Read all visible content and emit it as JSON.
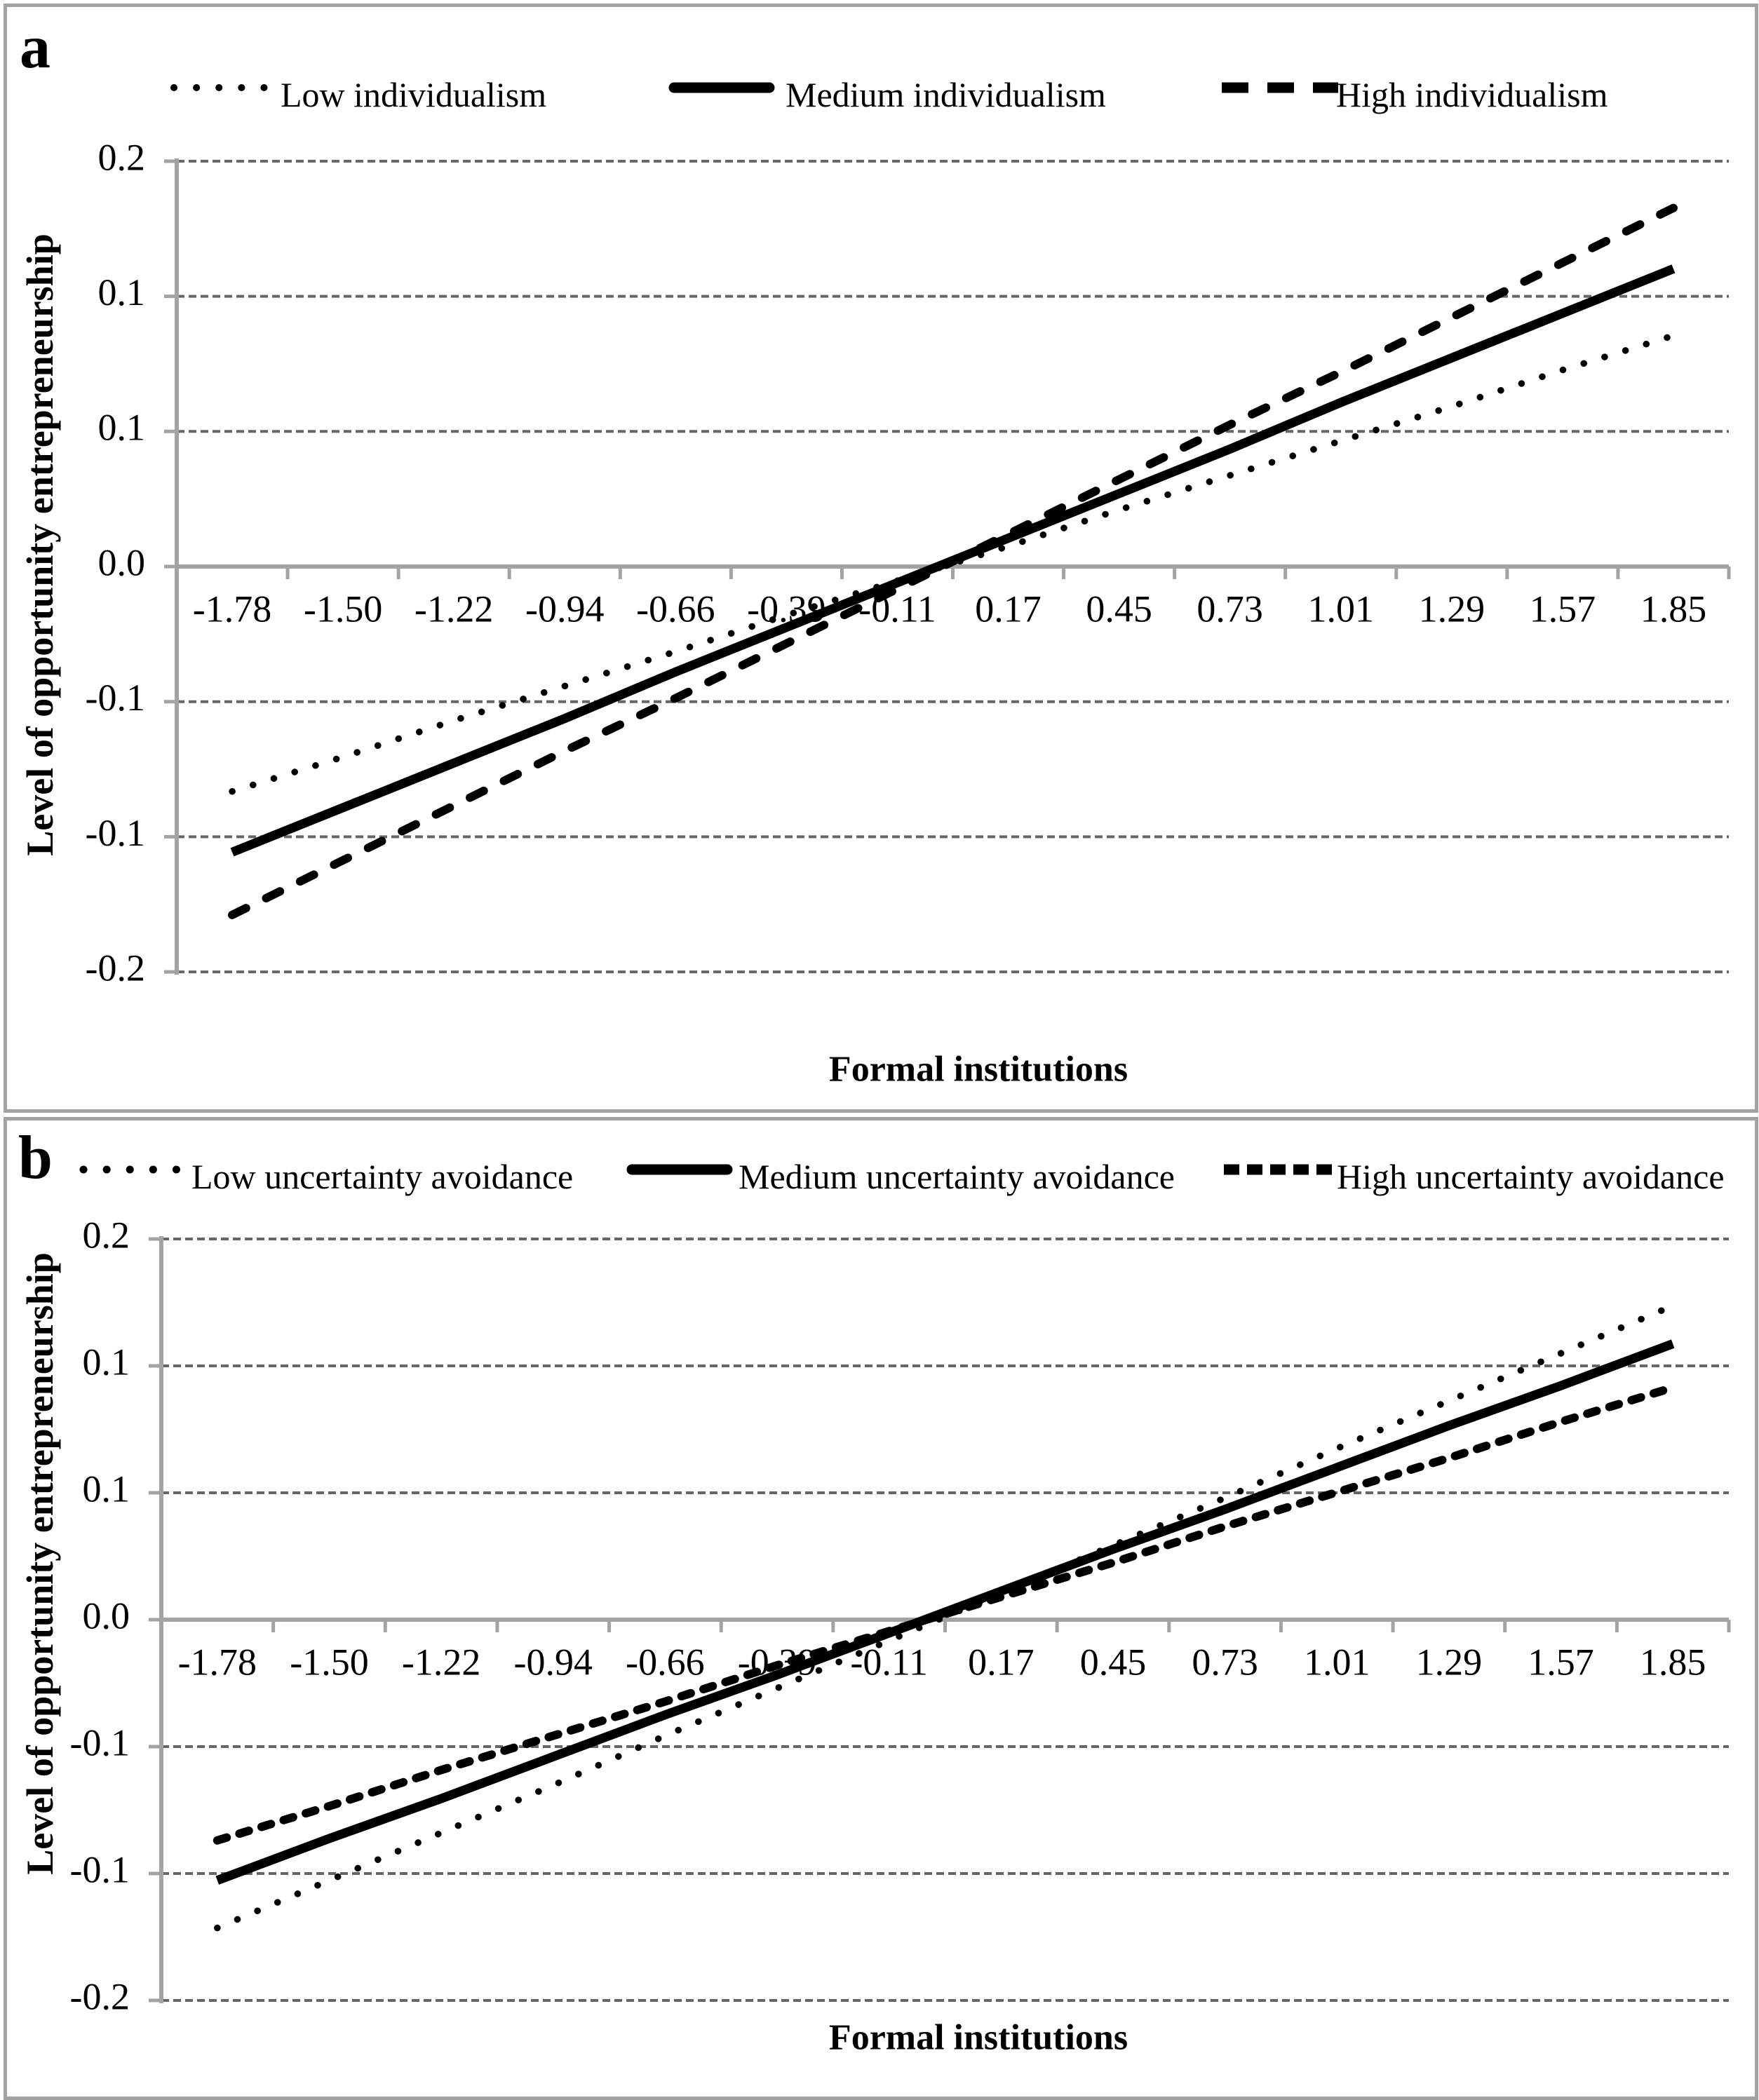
{
  "figure_background": "#ffffff",
  "colors": {
    "line": "#000000",
    "gridline": "#666666",
    "axis": "#a3a3a3",
    "panel_border": "#a3a3a3",
    "text": "#000000",
    "background": "#ffffff"
  },
  "chart_data": [
    {
      "type": "line",
      "panel_label": "a",
      "xlabel": "Formal institutions",
      "ylabel": "Level of opportunity entrepreneurship",
      "ylim": [
        -0.2,
        0.2
      ],
      "y_tick_step": 0.0667,
      "legend_position": "top",
      "gridlines": "horizontal-dashed",
      "categories": [
        -1.78,
        -1.5,
        -1.22,
        -0.94,
        -0.66,
        -0.39,
        -0.11,
        0.17,
        0.45,
        0.73,
        1.01,
        1.29,
        1.57,
        1.85
      ],
      "x_tick_labels": [
        "-1.78",
        "-1.50",
        "-1.22",
        "-0.94",
        "-0.66",
        "-0.39",
        "-0.11",
        "0.17",
        "0.45",
        "0.73",
        "1.01",
        "1.29",
        "1.57",
        "1.85"
      ],
      "y_tick_labels": [
        "0.2",
        "0.1",
        "0.1",
        "0.0",
        "-0.1",
        "-0.1",
        "-0.2"
      ],
      "series": [
        {
          "name": "Low individualism",
          "line_style": "dotted",
          "values": [
            -0.111,
            -0.094,
            -0.076,
            -0.059,
            -0.042,
            -0.024,
            -0.007,
            0.01,
            0.028,
            0.045,
            0.062,
            0.079,
            0.097,
            0.114
          ]
        },
        {
          "name": "Medium individualism",
          "line_style": "solid",
          "values": [
            -0.141,
            -0.119,
            -0.097,
            -0.075,
            -0.052,
            -0.03,
            -0.008,
            0.014,
            0.036,
            0.058,
            0.081,
            0.103,
            0.125,
            0.147
          ]
        },
        {
          "name": "High individualism",
          "line_style": "dashed-long",
          "values": [
            -0.172,
            -0.145,
            -0.118,
            -0.091,
            -0.065,
            -0.038,
            -0.011,
            0.016,
            0.043,
            0.07,
            0.096,
            0.123,
            0.15,
            0.177
          ]
        }
      ]
    },
    {
      "type": "line",
      "panel_label": "b",
      "xlabel": "Formal institutions",
      "ylabel": "Level of opportunity entrepreneurship",
      "ylim": [
        -0.2,
        0.2
      ],
      "y_tick_step": 0.0667,
      "legend_position": "top",
      "gridlines": "horizontal-dashed",
      "categories": [
        -1.78,
        -1.5,
        -1.22,
        -0.94,
        -0.66,
        -0.39,
        -0.11,
        0.17,
        0.45,
        0.73,
        1.01,
        1.29,
        1.57,
        1.85
      ],
      "x_tick_labels": [
        "-1.78",
        "-1.50",
        "-1.22",
        "-0.94",
        "-0.66",
        "-0.39",
        "-0.11",
        "0.17",
        "0.45",
        "0.73",
        "1.01",
        "1.29",
        "1.57",
        "1.85"
      ],
      "y_tick_labels": [
        "0.2",
        "0.1",
        "0.1",
        "0.0",
        "-0.1",
        "-0.1",
        "-0.2"
      ],
      "series": [
        {
          "name": "Low uncertainty avoidance",
          "line_style": "dotted",
          "values": [
            -0.162,
            -0.137,
            -0.112,
            -0.087,
            -0.061,
            -0.036,
            -0.011,
            0.014,
            0.039,
            0.064,
            0.09,
            0.115,
            0.14,
            0.165
          ]
        },
        {
          "name": "Medium uncertainty avoidance",
          "line_style": "solid",
          "values": [
            -0.137,
            -0.115,
            -0.094,
            -0.072,
            -0.05,
            -0.029,
            -0.007,
            0.015,
            0.037,
            0.058,
            0.08,
            0.102,
            0.123,
            0.145
          ]
        },
        {
          "name": "High uncertainty avoidance",
          "line_style": "dashed-short",
          "values": [
            -0.116,
            -0.098,
            -0.079,
            -0.061,
            -0.043,
            -0.024,
            -0.006,
            0.012,
            0.03,
            0.049,
            0.067,
            0.085,
            0.104,
            0.122
          ]
        }
      ]
    }
  ]
}
